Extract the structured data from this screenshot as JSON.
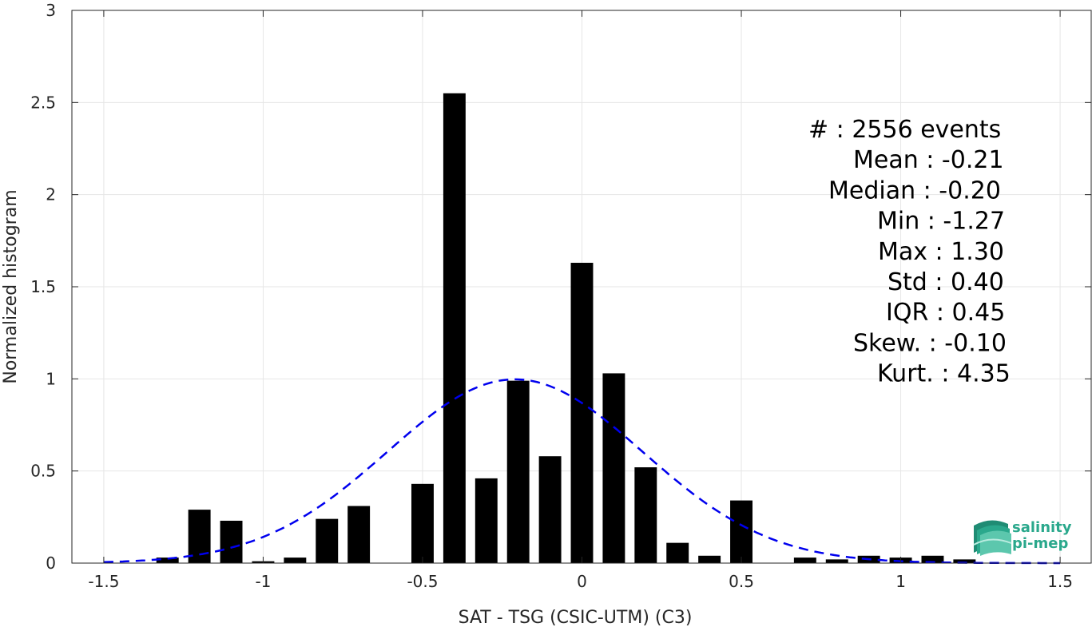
{
  "chart_data": {
    "type": "bar",
    "xlabel": "SAT - TSG (CSIC-UTM) (C3)",
    "ylabel": "Normalized histogram",
    "xlim": [
      -1.6,
      1.6
    ],
    "ylim": [
      0,
      3
    ],
    "xticks": [
      -1.5,
      -1,
      -0.5,
      0,
      0.5,
      1,
      1.5
    ],
    "xtick_labels": [
      "-1.5",
      "-1",
      "-0.5",
      "0",
      "0.5",
      "1",
      "1.5"
    ],
    "yticks": [
      0,
      0.5,
      1,
      1.5,
      2,
      2.5,
      3
    ],
    "ytick_labels": [
      "0",
      "0.5",
      "1",
      "1.5",
      "2",
      "2.5",
      "3"
    ],
    "grid": true,
    "bar_width": 0.07,
    "bar_color": "#000000",
    "bars": [
      {
        "x": -1.3,
        "value": 0.03
      },
      {
        "x": -1.2,
        "value": 0.29
      },
      {
        "x": -1.1,
        "value": 0.23
      },
      {
        "x": -1.0,
        "value": 0.01
      },
      {
        "x": -0.9,
        "value": 0.03
      },
      {
        "x": -0.8,
        "value": 0.24
      },
      {
        "x": -0.7,
        "value": 0.31
      },
      {
        "x": -0.5,
        "value": 0.43
      },
      {
        "x": -0.4,
        "value": 2.55
      },
      {
        "x": -0.3,
        "value": 0.46
      },
      {
        "x": -0.2,
        "value": 0.99
      },
      {
        "x": -0.1,
        "value": 0.58
      },
      {
        "x": 0.0,
        "value": 1.63
      },
      {
        "x": 0.1,
        "value": 1.03
      },
      {
        "x": 0.2,
        "value": 0.52
      },
      {
        "x": 0.3,
        "value": 0.11
      },
      {
        "x": 0.4,
        "value": 0.04
      },
      {
        "x": 0.5,
        "value": 0.34
      },
      {
        "x": 0.7,
        "value": 0.03
      },
      {
        "x": 0.8,
        "value": 0.02
      },
      {
        "x": 0.9,
        "value": 0.04
      },
      {
        "x": 1.0,
        "value": 0.03
      },
      {
        "x": 1.1,
        "value": 0.04
      },
      {
        "x": 1.2,
        "value": 0.02
      }
    ],
    "fit_curve": {
      "style": "dashed",
      "color": "#0000ee",
      "mean": -0.21,
      "std": 0.4,
      "x_range": [
        -1.5,
        1.5
      ]
    },
    "stats": [
      {
        "label": "#  ",
        "value": ": 2556 events"
      },
      {
        "label": "Mean",
        "value": ": -0.21"
      },
      {
        "label": "Median",
        "value": ": -0.20"
      },
      {
        "label": "Min",
        "value": ": -1.27"
      },
      {
        "label": "Max",
        "value": ": 1.30"
      },
      {
        "label": "Std",
        "value": ": 0.40"
      },
      {
        "label": "IQR",
        "value": ": 0.45"
      },
      {
        "label": "Skew.",
        "value": ": -0.10"
      },
      {
        "label": "Kurt.",
        "value": ": 4.35"
      }
    ]
  },
  "logo": {
    "line1": "salinity",
    "line2": "pi-mep",
    "color": "#2aa88c",
    "icon": "waves-icon"
  }
}
